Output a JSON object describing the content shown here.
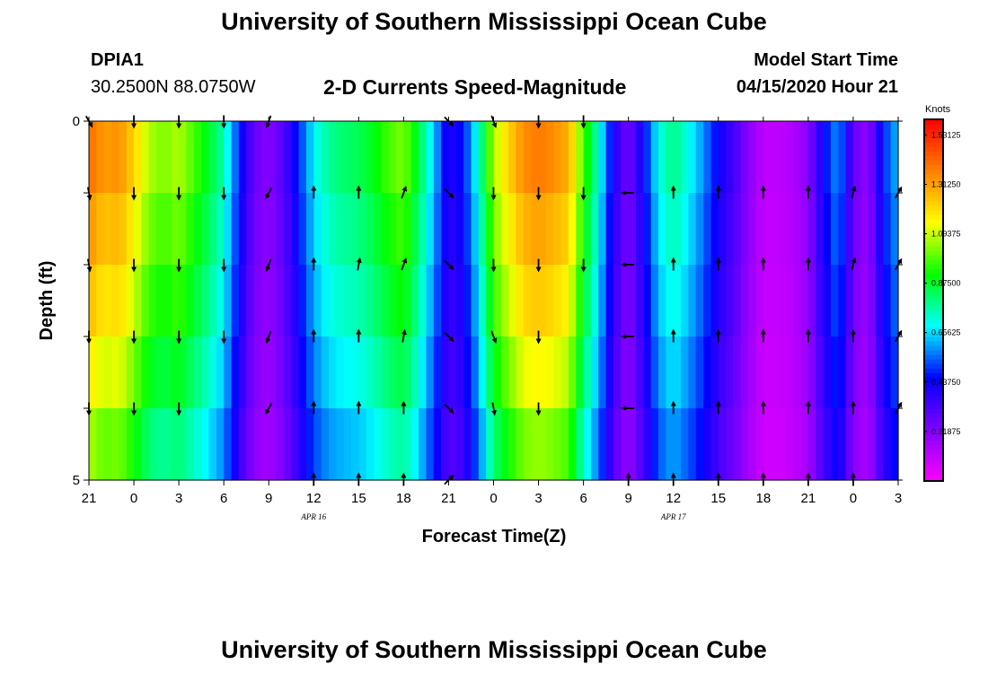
{
  "header": {
    "title_top": "University of Southern Mississippi Ocean Cube",
    "title_bottom": "University of Southern Mississippi Ocean Cube",
    "station_id": "DPIA1",
    "station_coords": "30.2500N 88.0750W",
    "plot_title": "2-D Currents Speed-Magnitude",
    "model_start_label": "Model Start Time",
    "model_start_value": "04/15/2020 Hour 21"
  },
  "colors": {
    "scale": [
      "#ff00ff",
      "#8000ff",
      "#0000ff",
      "#00ffff",
      "#00ff00",
      "#ffff00",
      "#ff8000",
      "#ff0000"
    ],
    "arrow": "#000000"
  },
  "chart_data": {
    "type": "heatmap",
    "title": "2-D Currents Speed-Magnitude",
    "xlabel": "Forecast Time(Z)",
    "ylabel": "Depth (ft)",
    "x_range": [
      0,
      54
    ],
    "y_range": [
      0,
      5
    ],
    "x_ticks": [
      {
        "x": 0,
        "label": "21"
      },
      {
        "x": 3,
        "label": "0"
      },
      {
        "x": 6,
        "label": "3"
      },
      {
        "x": 9,
        "label": "6"
      },
      {
        "x": 12,
        "label": "9"
      },
      {
        "x": 15,
        "label": "12"
      },
      {
        "x": 18,
        "label": "15"
      },
      {
        "x": 21,
        "label": "18"
      },
      {
        "x": 24,
        "label": "21"
      },
      {
        "x": 27,
        "label": "0"
      },
      {
        "x": 30,
        "label": "3"
      },
      {
        "x": 33,
        "label": "6"
      },
      {
        "x": 36,
        "label": "9"
      },
      {
        "x": 39,
        "label": "12"
      },
      {
        "x": 42,
        "label": "15"
      },
      {
        "x": 45,
        "label": "18"
      },
      {
        "x": 48,
        "label": "21"
      },
      {
        "x": 51,
        "label": "0"
      },
      {
        "x": 54,
        "label": "3"
      }
    ],
    "y_ticks": [
      {
        "y": 0,
        "label": "0"
      },
      {
        "y": 1,
        "label": ""
      },
      {
        "y": 2,
        "label": ""
      },
      {
        "y": 3,
        "label": ""
      },
      {
        "y": 4,
        "label": ""
      },
      {
        "y": 5,
        "label": "5"
      }
    ],
    "date_labels": [
      {
        "x": 15,
        "label": "APR 16"
      },
      {
        "x": 39,
        "label": "APR 17"
      }
    ],
    "depths": [
      0,
      1,
      2,
      3,
      4,
      5
    ],
    "speed_profile": [
      [
        0,
        1.45
      ],
      [
        1,
        1.35
      ],
      [
        2,
        1.38
      ],
      [
        3,
        1.25
      ],
      [
        4,
        1.1
      ],
      [
        5,
        1.05
      ],
      [
        6,
        1.1
      ],
      [
        7,
        1.0
      ],
      [
        8,
        0.9
      ],
      [
        9,
        0.78
      ],
      [
        10,
        0.5
      ],
      [
        11,
        0.28
      ],
      [
        12,
        0.22
      ],
      [
        13,
        0.32
      ],
      [
        14,
        0.5
      ],
      [
        15,
        0.7
      ],
      [
        16,
        0.8
      ],
      [
        17,
        0.84
      ],
      [
        18,
        0.86
      ],
      [
        19,
        0.92
      ],
      [
        20,
        1.0
      ],
      [
        21,
        1.05
      ],
      [
        22,
        0.88
      ],
      [
        23,
        0.66
      ],
      [
        24,
        0.4
      ],
      [
        25,
        0.48
      ],
      [
        26,
        0.75
      ],
      [
        27,
        1.1
      ],
      [
        28,
        1.25
      ],
      [
        29,
        1.38
      ],
      [
        30,
        1.42
      ],
      [
        31,
        1.38
      ],
      [
        32,
        1.32
      ],
      [
        33,
        1.0
      ],
      [
        34,
        0.75
      ],
      [
        35,
        0.42
      ],
      [
        36,
        0.25
      ],
      [
        37,
        0.45
      ],
      [
        38,
        0.72
      ],
      [
        39,
        0.82
      ],
      [
        40,
        0.72
      ],
      [
        41,
        0.6
      ],
      [
        42,
        0.45
      ],
      [
        43,
        0.35
      ],
      [
        44,
        0.22
      ],
      [
        45,
        0.12
      ],
      [
        46,
        0.12
      ],
      [
        47,
        0.15
      ],
      [
        48,
        0.22
      ],
      [
        49,
        0.45
      ],
      [
        50,
        0.62
      ],
      [
        51,
        0.28
      ],
      [
        52,
        0.2
      ],
      [
        53,
        0.5
      ],
      [
        54,
        0.65
      ]
    ],
    "depth_factor": [
      1.0,
      0.95,
      0.9,
      0.85,
      0.78,
      0.7
    ],
    "vectors": [
      {
        "x": 0,
        "d": 0,
        "dir": 150
      },
      {
        "x": 3,
        "d": 0,
        "dir": 180
      },
      {
        "x": 6,
        "d": 0,
        "dir": 180
      },
      {
        "x": 9,
        "d": 0,
        "dir": 180
      },
      {
        "x": 12,
        "d": 0,
        "dir": 200
      },
      {
        "x": 24,
        "d": 0,
        "dir": 135
      },
      {
        "x": 27,
        "d": 0,
        "dir": 160
      },
      {
        "x": 30,
        "d": 0,
        "dir": 180
      },
      {
        "x": 33,
        "d": 0,
        "dir": 180
      },
      {
        "x": 0,
        "d": 1,
        "dir": 170
      },
      {
        "x": 3,
        "d": 1,
        "dir": 180
      },
      {
        "x": 6,
        "d": 1,
        "dir": 180
      },
      {
        "x": 9,
        "d": 1,
        "dir": 180
      },
      {
        "x": 12,
        "d": 1,
        "dir": 210
      },
      {
        "x": 15,
        "d": 1,
        "dir": 0
      },
      {
        "x": 18,
        "d": 1,
        "dir": 0
      },
      {
        "x": 21,
        "d": 1,
        "dir": 20
      },
      {
        "x": 24,
        "d": 1,
        "dir": 135
      },
      {
        "x": 27,
        "d": 1,
        "dir": 180
      },
      {
        "x": 30,
        "d": 1,
        "dir": 180
      },
      {
        "x": 33,
        "d": 1,
        "dir": 180
      },
      {
        "x": 36,
        "d": 1,
        "dir": 270
      },
      {
        "x": 39,
        "d": 1,
        "dir": 0
      },
      {
        "x": 42,
        "d": 1,
        "dir": 0
      },
      {
        "x": 45,
        "d": 1,
        "dir": 0
      },
      {
        "x": 48,
        "d": 1,
        "dir": 0
      },
      {
        "x": 51,
        "d": 1,
        "dir": 15
      },
      {
        "x": 54,
        "d": 1,
        "dir": 30
      },
      {
        "x": 0,
        "d": 2,
        "dir": 170
      },
      {
        "x": 3,
        "d": 2,
        "dir": 180
      },
      {
        "x": 6,
        "d": 2,
        "dir": 180
      },
      {
        "x": 9,
        "d": 2,
        "dir": 180
      },
      {
        "x": 12,
        "d": 2,
        "dir": 200
      },
      {
        "x": 15,
        "d": 2,
        "dir": 0
      },
      {
        "x": 18,
        "d": 2,
        "dir": 10
      },
      {
        "x": 21,
        "d": 2,
        "dir": 20
      },
      {
        "x": 24,
        "d": 2,
        "dir": 135
      },
      {
        "x": 27,
        "d": 2,
        "dir": 180
      },
      {
        "x": 30,
        "d": 2,
        "dir": 180
      },
      {
        "x": 33,
        "d": 2,
        "dir": 180
      },
      {
        "x": 36,
        "d": 2,
        "dir": 270
      },
      {
        "x": 39,
        "d": 2,
        "dir": 0
      },
      {
        "x": 42,
        "d": 2,
        "dir": 0
      },
      {
        "x": 45,
        "d": 2,
        "dir": 0
      },
      {
        "x": 48,
        "d": 2,
        "dir": 0
      },
      {
        "x": 51,
        "d": 2,
        "dir": 15
      },
      {
        "x": 54,
        "d": 2,
        "dir": 30
      },
      {
        "x": 0,
        "d": 3,
        "dir": 180
      },
      {
        "x": 3,
        "d": 3,
        "dir": 180
      },
      {
        "x": 6,
        "d": 3,
        "dir": 180
      },
      {
        "x": 9,
        "d": 3,
        "dir": 180
      },
      {
        "x": 12,
        "d": 3,
        "dir": 200
      },
      {
        "x": 15,
        "d": 3,
        "dir": 0
      },
      {
        "x": 18,
        "d": 3,
        "dir": 0
      },
      {
        "x": 21,
        "d": 3,
        "dir": 10
      },
      {
        "x": 24,
        "d": 3,
        "dir": 135
      },
      {
        "x": 27,
        "d": 3,
        "dir": 160
      },
      {
        "x": 30,
        "d": 3,
        "dir": 180
      },
      {
        "x": 36,
        "d": 3,
        "dir": 270
      },
      {
        "x": 39,
        "d": 3,
        "dir": 0
      },
      {
        "x": 42,
        "d": 3,
        "dir": 0
      },
      {
        "x": 45,
        "d": 3,
        "dir": 0
      },
      {
        "x": 48,
        "d": 3,
        "dir": 0
      },
      {
        "x": 51,
        "d": 3,
        "dir": 0
      },
      {
        "x": 54,
        "d": 3,
        "dir": 30
      },
      {
        "x": 0,
        "d": 4,
        "dir": 180
      },
      {
        "x": 3,
        "d": 4,
        "dir": 180
      },
      {
        "x": 6,
        "d": 4,
        "dir": 180
      },
      {
        "x": 12,
        "d": 4,
        "dir": 210
      },
      {
        "x": 15,
        "d": 4,
        "dir": 0
      },
      {
        "x": 18,
        "d": 4,
        "dir": 0
      },
      {
        "x": 21,
        "d": 4,
        "dir": 0
      },
      {
        "x": 24,
        "d": 4,
        "dir": 135
      },
      {
        "x": 27,
        "d": 4,
        "dir": 170
      },
      {
        "x": 30,
        "d": 4,
        "dir": 180
      },
      {
        "x": 36,
        "d": 4,
        "dir": 270
      },
      {
        "x": 39,
        "d": 4,
        "dir": 0
      },
      {
        "x": 42,
        "d": 4,
        "dir": 0
      },
      {
        "x": 45,
        "d": 4,
        "dir": 0
      },
      {
        "x": 48,
        "d": 4,
        "dir": 0
      },
      {
        "x": 51,
        "d": 4,
        "dir": 0
      },
      {
        "x": 54,
        "d": 4,
        "dir": 30
      },
      {
        "x": 15,
        "d": 5,
        "dir": 0
      },
      {
        "x": 18,
        "d": 5,
        "dir": 0
      },
      {
        "x": 21,
        "d": 5,
        "dir": 0
      },
      {
        "x": 24,
        "d": 5,
        "dir": 45
      },
      {
        "x": 36,
        "d": 5,
        "dir": 0
      },
      {
        "x": 39,
        "d": 5,
        "dir": 0
      },
      {
        "x": 42,
        "d": 5,
        "dir": 0
      },
      {
        "x": 45,
        "d": 5,
        "dir": 0
      },
      {
        "x": 48,
        "d": 5,
        "dir": 0
      },
      {
        "x": 51,
        "d": 5,
        "dir": 0
      }
    ],
    "colorbar": {
      "unit": "Knots",
      "range": [
        0,
        1.6
      ],
      "labels": [
        "0.21875",
        "0.43750",
        "0.65625",
        "0.87500",
        "1.09375",
        "1.31250",
        "1.53125"
      ]
    }
  }
}
